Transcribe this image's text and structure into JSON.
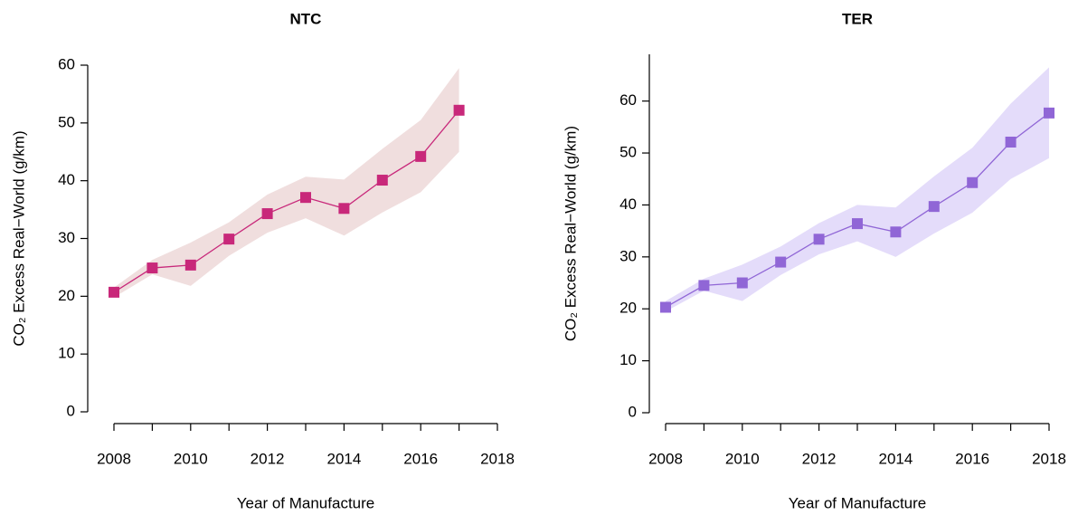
{
  "chart_data": [
    {
      "type": "line",
      "title": "NTC",
      "x_label": "Year of Manufacture",
      "y_label": "CO₂ Excess Real−World (g/km)",
      "x": [
        2008,
        2009,
        2010,
        2011,
        2012,
        2013,
        2014,
        2015,
        2016,
        2017
      ],
      "series": [
        {
          "color": "#c8287a",
          "band_color": "#f0dede",
          "values": [
            20.7,
            24.9,
            25.4,
            29.9,
            34.3,
            37.1,
            35.2,
            40.1,
            44.2,
            52.2
          ],
          "lower": [
            19.8,
            23.8,
            21.8,
            27,
            31,
            33.5,
            30.5,
            34.5,
            38,
            45
          ],
          "upper": [
            21.5,
            26.3,
            29.3,
            32.8,
            37.6,
            40.7,
            40.2,
            45.5,
            50.5,
            59.5
          ]
        }
      ],
      "xlim": [
        2008,
        2018
      ],
      "xticks": [
        2008,
        2010,
        2012,
        2014,
        2016,
        2018
      ],
      "xticks_minor": [
        2009,
        2011,
        2013,
        2015,
        2017
      ],
      "ylim": [
        0,
        60
      ],
      "yticks": [
        0,
        10,
        20,
        30,
        40,
        50,
        60
      ]
    },
    {
      "type": "line",
      "title": "TER",
      "x_label": "Year of Manufacture",
      "y_label": "CO₂ Excess Real−World (g/km)",
      "x": [
        2008,
        2009,
        2010,
        2011,
        2012,
        2013,
        2014,
        2015,
        2016,
        2017,
        2018
      ],
      "series": [
        {
          "color": "#9066d6",
          "band_color": "#e4dcfa",
          "values": [
            20.3,
            24.5,
            25.0,
            29.0,
            33.4,
            36.4,
            34.8,
            39.7,
            44.3,
            52.1,
            57.7
          ],
          "lower": [
            19.5,
            23.5,
            21.5,
            26.5,
            30.5,
            33,
            30,
            34.5,
            38.5,
            45,
            49
          ],
          "upper": [
            21.5,
            25.8,
            28.5,
            32,
            36.5,
            40,
            39.5,
            45.5,
            51,
            59.5,
            66.5
          ]
        }
      ],
      "xlim": [
        2008,
        2018
      ],
      "xticks": [
        2008,
        2010,
        2012,
        2014,
        2016,
        2018
      ],
      "xticks_minor": [
        2009,
        2011,
        2013,
        2015,
        2017
      ],
      "ylim": [
        0,
        69
      ],
      "yticks": [
        0,
        10,
        20,
        30,
        40,
        50,
        60
      ]
    }
  ]
}
